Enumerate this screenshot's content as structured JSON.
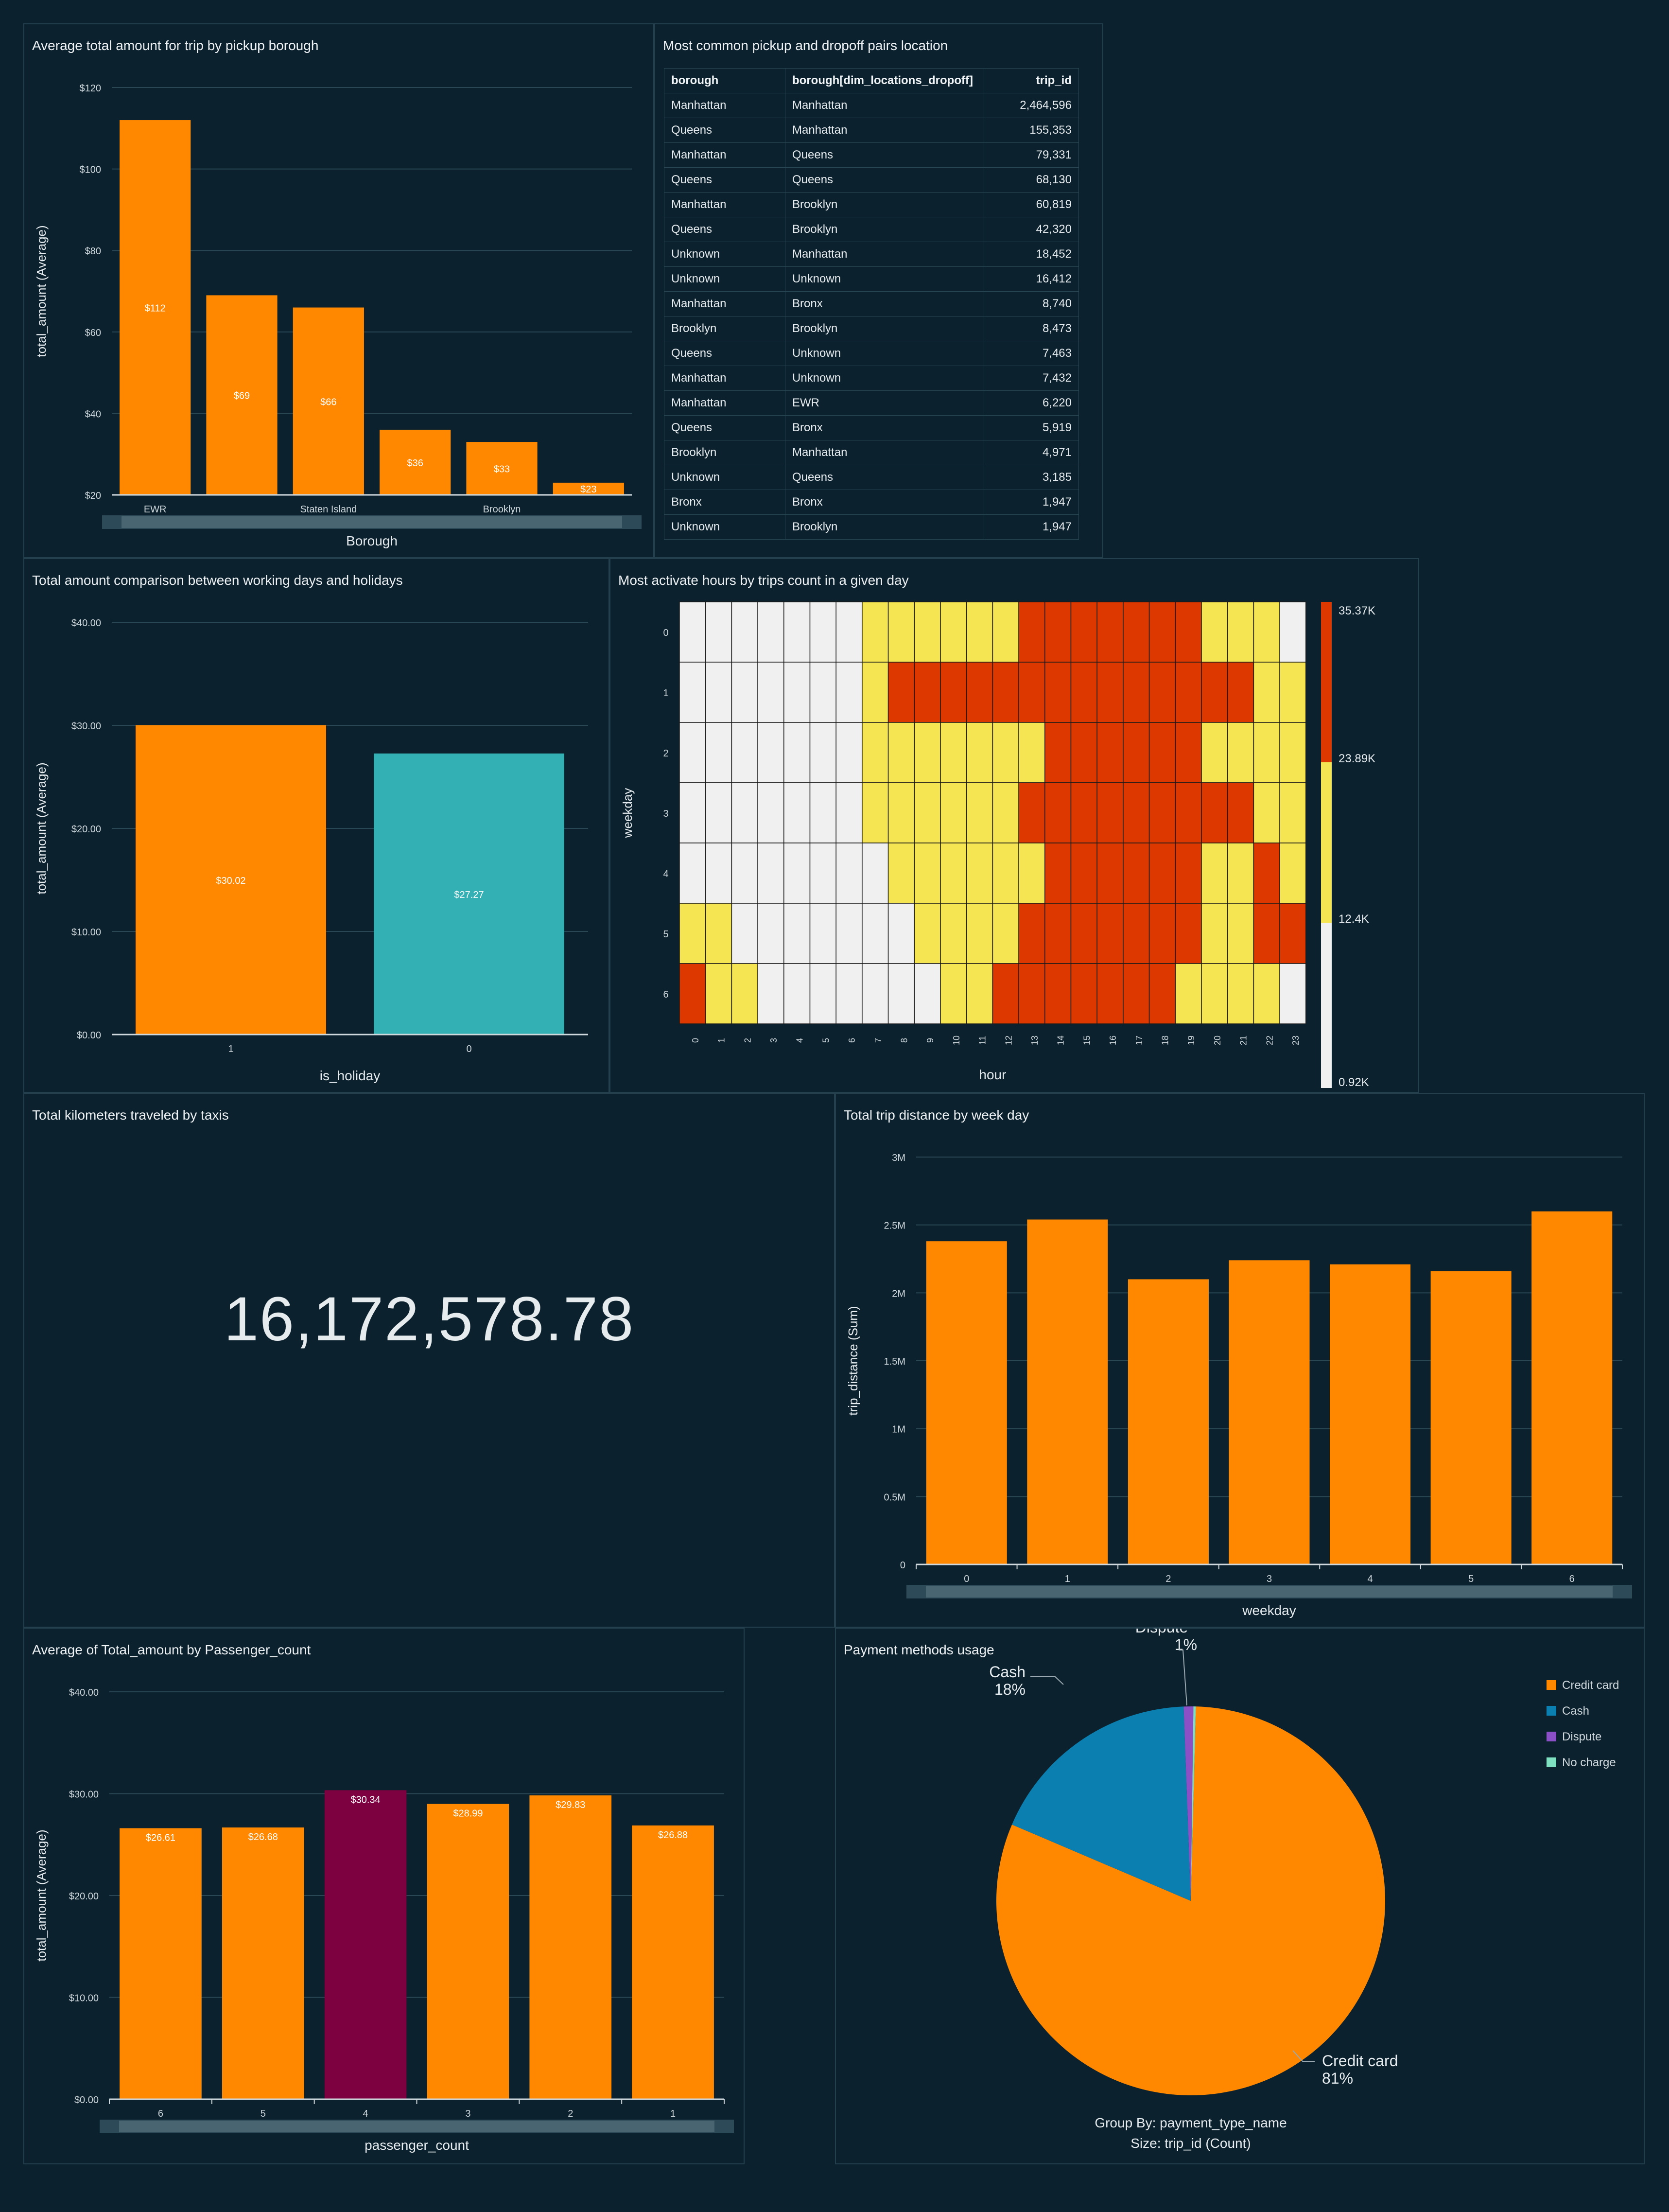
{
  "colors": {
    "orange": "#ff8800",
    "teal": "#33b0b3",
    "maroon": "#7d0040",
    "blue": "#0a7fb0",
    "purple": "#8b4fc6",
    "mint": "#7ee0c0",
    "hm_low": "#f0f0f0",
    "hm_mid": "#f5e552",
    "hm_high": "#dc3800",
    "grid": "#2a4756",
    "axis": "#cfd8dd",
    "label": "#cfd8dd",
    "bg": "#0b212d"
  },
  "panels": {
    "borough": {
      "title": "Average total amount for trip by pickup borough"
    },
    "pairs": {
      "title": "Most common pickup and dropoff pairs location"
    },
    "holiday": {
      "title": "Total amount comparison between working days and holidays"
    },
    "heatmap": {
      "title": "Most activate hours by trips count in a given day"
    },
    "km": {
      "title": "Total kilometers traveled by taxis",
      "value": "16,172,578.78"
    },
    "weekday": {
      "title": "Total trip distance by week day"
    },
    "passenger": {
      "title": "Average of Total_amount by Passenger_count"
    },
    "payment": {
      "title": "Payment methods usage"
    }
  },
  "table": {
    "headers": [
      "borough",
      "borough[dim_locations_dropoff]",
      "trip_id"
    ],
    "rows": [
      [
        "Manhattan",
        "Manhattan",
        "2,464,596"
      ],
      [
        "Queens",
        "Manhattan",
        "155,353"
      ],
      [
        "Manhattan",
        "Queens",
        "79,331"
      ],
      [
        "Queens",
        "Queens",
        "68,130"
      ],
      [
        "Manhattan",
        "Brooklyn",
        "60,819"
      ],
      [
        "Queens",
        "Brooklyn",
        "42,320"
      ],
      [
        "Unknown",
        "Manhattan",
        "18,452"
      ],
      [
        "Unknown",
        "Unknown",
        "16,412"
      ],
      [
        "Manhattan",
        "Bronx",
        "8,740"
      ],
      [
        "Brooklyn",
        "Brooklyn",
        "8,473"
      ],
      [
        "Queens",
        "Unknown",
        "7,463"
      ],
      [
        "Manhattan",
        "Unknown",
        "7,432"
      ],
      [
        "Manhattan",
        "EWR",
        "6,220"
      ],
      [
        "Queens",
        "Bronx",
        "5,919"
      ],
      [
        "Brooklyn",
        "Manhattan",
        "4,971"
      ],
      [
        "Unknown",
        "Queens",
        "3,185"
      ],
      [
        "Bronx",
        "Bronx",
        "1,947"
      ],
      [
        "Unknown",
        "Brooklyn",
        "1,947"
      ]
    ]
  },
  "chart_data": [
    {
      "id": "borough",
      "type": "bar",
      "categories": [
        "EWR",
        "",
        "Staten Island",
        "",
        "Brooklyn",
        ""
      ],
      "values": [
        112,
        69,
        66,
        36,
        33,
        23
      ],
      "data_labels": [
        "$112",
        "$69",
        "$66",
        "$36",
        "$33",
        "$23"
      ],
      "xlabel": "Borough",
      "ylabel": "total_amount (Average)",
      "ylim": [
        20,
        120
      ],
      "yticks": [
        20,
        40,
        60,
        80,
        100,
        120
      ],
      "ytick_labels": [
        "$20",
        "$40",
        "$60",
        "$80",
        "$100",
        "$120"
      ]
    },
    {
      "id": "holiday",
      "type": "bar",
      "categories": [
        "1",
        "0"
      ],
      "values": [
        30.02,
        27.27
      ],
      "data_labels": [
        "$30.02",
        "$27.27"
      ],
      "xlabel": "is_holiday",
      "ylabel": "total_amount (Average)",
      "ylim": [
        0,
        40
      ],
      "yticks": [
        0,
        10,
        20,
        30,
        40
      ],
      "ytick_labels": [
        "$0.00",
        "$10.00",
        "$20.00",
        "$30.00",
        "$40.00"
      ]
    },
    {
      "id": "heatmap",
      "type": "heatmap",
      "x": [
        "0",
        "1",
        "2",
        "3",
        "4",
        "5",
        "6",
        "7",
        "8",
        "9",
        "10",
        "11",
        "12",
        "13",
        "14",
        "15",
        "16",
        "17",
        "18",
        "19",
        "20",
        "21",
        "22",
        "23"
      ],
      "y": [
        "0",
        "1",
        "2",
        "3",
        "4",
        "5",
        "6"
      ],
      "xlabel": "hour",
      "ylabel": "weekday",
      "levels": [
        [
          0,
          0,
          0,
          0,
          0,
          0,
          0,
          1,
          1,
          1,
          1,
          1,
          1,
          2,
          2,
          2,
          2,
          2,
          2,
          2,
          1,
          1,
          1,
          0
        ],
        [
          0,
          0,
          0,
          0,
          0,
          0,
          0,
          1,
          2,
          2,
          2,
          2,
          2,
          2,
          2,
          2,
          2,
          2,
          2,
          2,
          2,
          2,
          1,
          1
        ],
        [
          0,
          0,
          0,
          0,
          0,
          0,
          0,
          1,
          1,
          1,
          1,
          1,
          1,
          1,
          2,
          2,
          2,
          2,
          2,
          2,
          1,
          1,
          1,
          1
        ],
        [
          0,
          0,
          0,
          0,
          0,
          0,
          0,
          1,
          1,
          1,
          1,
          1,
          1,
          2,
          2,
          2,
          2,
          2,
          2,
          2,
          2,
          2,
          1,
          1
        ],
        [
          0,
          0,
          0,
          0,
          0,
          0,
          0,
          0,
          1,
          1,
          1,
          1,
          1,
          1,
          2,
          2,
          2,
          2,
          2,
          2,
          1,
          1,
          2,
          1
        ],
        [
          1,
          1,
          0,
          0,
          0,
          0,
          0,
          0,
          0,
          1,
          1,
          1,
          1,
          2,
          2,
          2,
          2,
          2,
          2,
          2,
          1,
          1,
          2,
          2
        ],
        [
          2,
          1,
          1,
          0,
          0,
          0,
          0,
          0,
          0,
          0,
          1,
          1,
          2,
          2,
          2,
          2,
          2,
          2,
          2,
          1,
          1,
          1,
          1,
          0
        ]
      ],
      "legend_labels": [
        "35.37K",
        "23.89K",
        "12.4K",
        "0.92K"
      ]
    },
    {
      "id": "weekday",
      "type": "bar",
      "categories": [
        "0",
        "1",
        "2",
        "3",
        "4",
        "5",
        "6"
      ],
      "values": [
        2380000,
        2540000,
        2100000,
        2240000,
        2210000,
        2160000,
        2600000
      ],
      "xlabel": "weekday",
      "ylabel": "trip_distance (Sum)",
      "ylim": [
        0,
        3000000
      ],
      "yticks": [
        0,
        500000,
        1000000,
        1500000,
        2000000,
        2500000,
        3000000
      ],
      "ytick_labels": [
        "0",
        "0.5M",
        "1M",
        "1.5M",
        "2M",
        "2.5M",
        "3M"
      ]
    },
    {
      "id": "passenger",
      "type": "bar",
      "categories": [
        "6",
        "5",
        "4",
        "3",
        "2",
        "1"
      ],
      "values": [
        26.61,
        26.68,
        30.34,
        28.99,
        29.83,
        26.88
      ],
      "data_labels": [
        "$26.61",
        "$26.68",
        "$30.34",
        "$28.99",
        "$29.83",
        "$26.88"
      ],
      "highlight_index": 2,
      "xlabel": "passenger_count",
      "ylabel": "total_amount (Average)",
      "ylim": [
        0,
        40
      ],
      "yticks": [
        0,
        10,
        20,
        30,
        40
      ],
      "ytick_labels": [
        "$0.00",
        "$10.00",
        "$20.00",
        "$30.00",
        "$40.00"
      ]
    },
    {
      "id": "payment",
      "type": "pie",
      "labels": [
        "Credit card",
        "Cash",
        "Dispute",
        "No charge"
      ],
      "values": [
        81,
        18,
        0.8,
        0.2
      ],
      "slice_labels": [
        "Credit card\n81%",
        "Cash\n18%",
        "Dispute\n1%",
        ""
      ],
      "legend": [
        "Credit card",
        "Cash",
        "Dispute",
        "No charge"
      ],
      "legend_position": "top-right",
      "footer": [
        "Group By: payment_type_name",
        "Size: trip_id (Count)"
      ]
    }
  ]
}
